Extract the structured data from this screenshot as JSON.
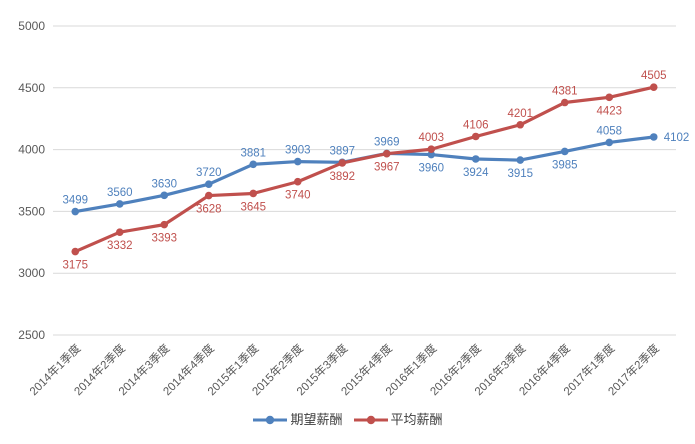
{
  "chart_data": {
    "type": "line",
    "title": "",
    "xlabel": "",
    "ylabel": "",
    "categories": [
      "2014年1季度",
      "2014年2季度",
      "2014年3季度",
      "2014年4季度",
      "2015年1季度",
      "2015年2季度",
      "2015年3季度",
      "2015年4季度",
      "2016年1季度",
      "2016年2季度",
      "2016年3季度",
      "2016年4季度",
      "2017年1季度",
      "2017年2季度"
    ],
    "series": [
      {
        "name": "期望薪酬",
        "color": "#4F81BD",
        "values": [
          3499,
          3560,
          3630,
          3720,
          3881,
          3903,
          3897,
          3969,
          3960,
          3924,
          3915,
          3985,
          4058,
          4102
        ],
        "label_sides": [
          "above",
          "above",
          "above",
          "above",
          "above",
          "above",
          "above",
          "above",
          "below",
          "below",
          "below",
          "below",
          "above",
          "right"
        ]
      },
      {
        "name": "平均薪酬",
        "color": "#C0504D",
        "values": [
          3175,
          3332,
          3393,
          3628,
          3645,
          3740,
          3892,
          3967,
          4003,
          4106,
          4201,
          4381,
          4423,
          4505
        ],
        "label_sides": [
          "below",
          "below",
          "below",
          "below",
          "below",
          "below",
          "below",
          "below",
          "above",
          "above",
          "above",
          "above",
          "below",
          "above"
        ]
      }
    ],
    "y_axis": {
      "min": 2500,
      "max": 5000,
      "step": 500,
      "ticks": [
        "2500",
        "3000",
        "3500",
        "4000",
        "4500",
        "5000"
      ]
    },
    "grid": true,
    "legend_position": "bottom",
    "colors": {
      "gridline": "#D9D9D9",
      "axis_text": "#595959",
      "background": "#FFFFFF"
    }
  }
}
